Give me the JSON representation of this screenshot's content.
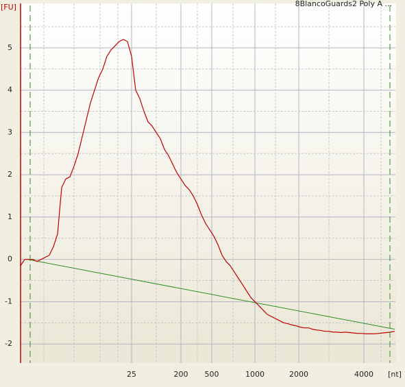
{
  "chart_data": {
    "type": "line",
    "title": "8BlancoGuards2 Poly A ...",
    "ylabel": "[FU]",
    "xlabel": "[nt]",
    "ylim": [
      -2.45,
      6.05
    ],
    "yticks": [
      -2,
      -1,
      0,
      1,
      2,
      3,
      4,
      5
    ],
    "xticks": [
      25,
      200,
      500,
      1000,
      2000,
      4000
    ],
    "color": "#c00000",
    "baseline_color": "#2e8b22",
    "grid": true,
    "values": [
      -0.15,
      0.0,
      0.0,
      0.0,
      -0.05,
      0.0,
      0.05,
      0.1,
      0.3,
      0.6,
      1.7,
      1.9,
      1.95,
      2.2,
      2.5,
      2.9,
      3.3,
      3.7,
      4.0,
      4.3,
      4.5,
      4.8,
      4.95,
      5.05,
      5.15,
      5.2,
      5.15,
      4.8,
      4.0,
      3.8,
      3.5,
      3.25,
      3.15,
      3.0,
      2.85,
      2.6,
      2.45,
      2.25,
      2.05,
      1.9,
      1.75,
      1.65,
      1.5,
      1.3,
      1.05,
      0.85,
      0.7,
      0.55,
      0.35,
      0.1,
      -0.05,
      -0.15,
      -0.3,
      -0.45,
      -0.6,
      -0.75,
      -0.9,
      -1.0,
      -1.1,
      -1.2,
      -1.3,
      -1.35,
      -1.4,
      -1.45,
      -1.5,
      -1.52,
      -1.55,
      -1.57,
      -1.6,
      -1.62,
      -1.62,
      -1.65,
      -1.67,
      -1.68,
      -1.7,
      -1.7,
      -1.72,
      -1.72,
      -1.73,
      -1.72,
      -1.73,
      -1.74,
      -1.75,
      -1.75,
      -1.76,
      -1.76,
      -1.76,
      -1.75,
      -1.74,
      -1.73,
      -1.72,
      -1.7
    ],
    "baseline": [
      0.0,
      -1.65
    ]
  }
}
